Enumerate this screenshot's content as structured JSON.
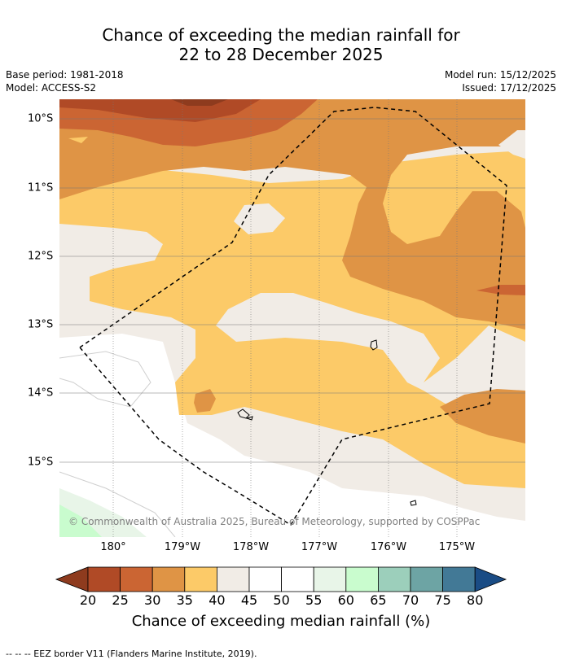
{
  "header": {
    "title_line1": "Chance of exceeding the median rainfall for",
    "title_line2": "22 to 28 December 2025",
    "base_period": "Base period: 1981-2018",
    "model": "Model: ACCESS-S2",
    "model_run": "Model run: 15/12/2025",
    "issued": "Issued: 17/12/2025"
  },
  "map": {
    "copyright": "© Commonwealth of Australia 2025, Bureau of Meteorology, supported by COSPPac",
    "lat_labels": [
      "10°S",
      "11°S",
      "12°S",
      "13°S",
      "14°S",
      "15°S"
    ],
    "lon_labels": [
      "180°",
      "179°W",
      "178°W",
      "177°W",
      "176°W",
      "175°W"
    ]
  },
  "colorbar": {
    "label": "Chance of exceeding median rainfall (%)",
    "ticks": [
      "20",
      "25",
      "30",
      "35",
      "40",
      "45",
      "50",
      "55",
      "60",
      "65",
      "70",
      "75",
      "80"
    ],
    "colors": {
      "lt20": "#8e3b1e",
      "20-25": "#b04a26",
      "25-30": "#cb6533",
      "30-35": "#df9445",
      "35-40": "#fcca68",
      "40-45": "#f1ece6",
      "45-50": "#ffffff",
      "50-55": "#ffffff",
      "55-60": "#e8f5e8",
      "60-65": "#c9fcce",
      "65-70": "#9ccfbb",
      "70-75": "#6da4a4",
      "75-80": "#427996",
      "gt80": "#1a4c85"
    }
  },
  "legend": {
    "eez_text": "--  --  -- EEZ border V11 (Flanders Marine Institute, 2019)."
  }
}
